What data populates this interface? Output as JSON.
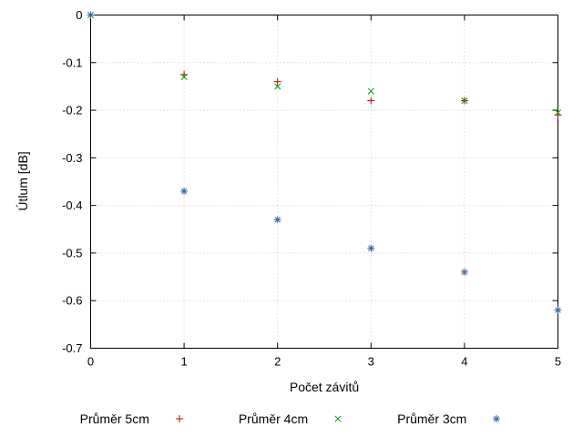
{
  "chart_data": {
    "type": "scatter",
    "title": "",
    "xlabel": "Počet závitů",
    "ylabel": "Útlum [dB]",
    "xlim": [
      0,
      5
    ],
    "ylim": [
      -0.7,
      0
    ],
    "xtick_labels": [
      "0",
      "1",
      "2",
      "3",
      "4",
      "5"
    ],
    "ytick_labels": [
      "0",
      "-0.1",
      "-0.2",
      "-0.3",
      "-0.4",
      "-0.5",
      "-0.6",
      "-0.7"
    ],
    "grid": true,
    "grid_style": "dotted",
    "grid_color": "#c8c8c8",
    "border_color": "#000000",
    "legend_position": "bottom-center",
    "series": [
      {
        "name": "Průměr 5cm",
        "marker": "plus",
        "color": "#cc0000",
        "x": [
          0,
          1,
          2,
          3,
          4,
          5
        ],
        "y": [
          0,
          -0.125,
          -0.14,
          -0.18,
          -0.18,
          -0.21
        ]
      },
      {
        "name": "Průměr 4cm",
        "marker": "cross",
        "color": "#00a000",
        "x": [
          0,
          1,
          2,
          3,
          4,
          5
        ],
        "y": [
          0,
          -0.13,
          -0.15,
          -0.16,
          -0.18,
          -0.205
        ]
      },
      {
        "name": "Průměr 3cm",
        "marker": "star",
        "color": "#3465a4",
        "x": [
          0,
          1,
          2,
          3,
          4,
          5
        ],
        "y": [
          0,
          -0.37,
          -0.43,
          -0.49,
          -0.54,
          -0.62
        ]
      }
    ]
  }
}
